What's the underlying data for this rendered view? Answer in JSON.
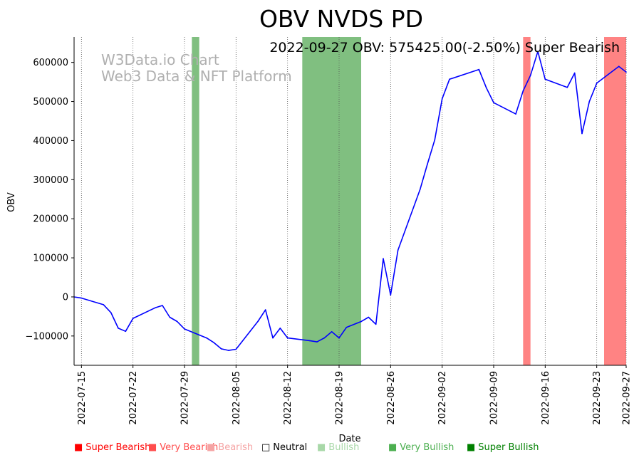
{
  "chart_data": {
    "type": "line",
    "title": "OBV NVDS PD",
    "annotation": "2022-09-27 OBV: 575425.00(-2.50%) Super Bearish",
    "watermark": [
      "W3Data.io Chart",
      "Web3 Data & NFT Platform"
    ],
    "xlabel": "Date",
    "ylabel": "OBV",
    "ylim": [
      -175000,
      665000
    ],
    "xlim": [
      "2022-07-14",
      "2022-09-27"
    ],
    "y_ticks": [
      {
        "value": -100000,
        "label": "−100000"
      },
      {
        "value": 0,
        "label": "0"
      },
      {
        "value": 100000,
        "label": "100000"
      },
      {
        "value": 200000,
        "label": "200000"
      },
      {
        "value": 300000,
        "label": "300000"
      },
      {
        "value": 400000,
        "label": "400000"
      },
      {
        "value": 500000,
        "label": "500000"
      },
      {
        "value": 600000,
        "label": "600000"
      }
    ],
    "x_ticks": [
      "2022-07-15",
      "2022-07-22",
      "2022-07-29",
      "2022-08-05",
      "2022-08-12",
      "2022-08-19",
      "2022-08-26",
      "2022-09-02",
      "2022-09-09",
      "2022-09-16",
      "2022-09-23",
      "2022-09-27"
    ],
    "grid": "vertical dotted",
    "series": [
      {
        "name": "OBV",
        "color": "#0000ff",
        "points": [
          [
            "2022-07-14",
            0
          ],
          [
            "2022-07-15",
            -3000
          ],
          [
            "2022-07-18",
            -20000
          ],
          [
            "2022-07-19",
            -40000
          ],
          [
            "2022-07-20",
            -80000
          ],
          [
            "2022-07-21",
            -88000
          ],
          [
            "2022-07-22",
            -55000
          ],
          [
            "2022-07-25",
            -28000
          ],
          [
            "2022-07-26",
            -22000
          ],
          [
            "2022-07-27",
            -52000
          ],
          [
            "2022-07-28",
            -63000
          ],
          [
            "2022-07-29",
            -82000
          ],
          [
            "2022-08-01",
            -105000
          ],
          [
            "2022-08-02",
            -117000
          ],
          [
            "2022-08-03",
            -133000
          ],
          [
            "2022-08-04",
            -137000
          ],
          [
            "2022-08-05",
            -134000
          ],
          [
            "2022-08-08",
            -62000
          ],
          [
            "2022-08-09",
            -33000
          ],
          [
            "2022-08-10",
            -105000
          ],
          [
            "2022-08-11",
            -80000
          ],
          [
            "2022-08-12",
            -105000
          ],
          [
            "2022-08-15",
            -112000
          ],
          [
            "2022-08-16",
            -115000
          ],
          [
            "2022-08-17",
            -105000
          ],
          [
            "2022-08-18",
            -89000
          ],
          [
            "2022-08-19",
            -105000
          ],
          [
            "2022-08-20",
            -78000
          ],
          [
            "2022-08-22",
            -63000
          ],
          [
            "2022-08-23",
            -52000
          ],
          [
            "2022-08-24",
            -70000
          ],
          [
            "2022-08-25",
            98000
          ],
          [
            "2022-08-26",
            5000
          ],
          [
            "2022-08-27",
            120000
          ],
          [
            "2022-08-30",
            275000
          ],
          [
            "2022-08-31",
            340000
          ],
          [
            "2022-09-01",
            402000
          ],
          [
            "2022-09-02",
            507000
          ],
          [
            "2022-09-03",
            557000
          ],
          [
            "2022-09-07",
            582000
          ],
          [
            "2022-09-08",
            535000
          ],
          [
            "2022-09-09",
            497000
          ],
          [
            "2022-09-12",
            468000
          ],
          [
            "2022-09-13",
            527000
          ],
          [
            "2022-09-14",
            567000
          ],
          [
            "2022-09-15",
            628000
          ],
          [
            "2022-09-16",
            557000
          ],
          [
            "2022-09-19",
            536000
          ],
          [
            "2022-09-20",
            573000
          ],
          [
            "2022-09-21",
            418000
          ],
          [
            "2022-09-22",
            500000
          ],
          [
            "2022-09-23",
            547000
          ],
          [
            "2022-09-26",
            590000
          ],
          [
            "2022-09-27",
            575425
          ]
        ]
      }
    ],
    "bands": [
      {
        "start": "2022-07-30",
        "end": "2022-07-31",
        "sentiment": "Very Bullish",
        "color": "#55a955"
      },
      {
        "start": "2022-08-14",
        "end": "2022-08-22",
        "sentiment": "Very Bullish",
        "color": "#55a955"
      },
      {
        "start": "2022-09-13",
        "end": "2022-09-14",
        "sentiment": "Super Bearish",
        "color": "#ff5a5a"
      },
      {
        "start": "2022-09-24",
        "end": "2022-09-27",
        "sentiment": "Super Bearish",
        "color": "#ff5a5a"
      }
    ],
    "legend": [
      {
        "label": "Super Bearish",
        "symbol": "■",
        "color": "#ff0000"
      },
      {
        "label": "Very Bearish",
        "symbol": "■",
        "color": "#ff4d4d"
      },
      {
        "label": "Bearish",
        "symbol": "■",
        "color": "#f5a3a3"
      },
      {
        "label": "Neutral",
        "symbol": "□",
        "color": "#000000"
      },
      {
        "label": "Bullish",
        "symbol": "■",
        "color": "#a8d8a8"
      },
      {
        "label": "Very Bullish",
        "symbol": "■",
        "color": "#4caf50"
      },
      {
        "label": "Super Bullish",
        "symbol": "■",
        "color": "#008000"
      }
    ]
  }
}
